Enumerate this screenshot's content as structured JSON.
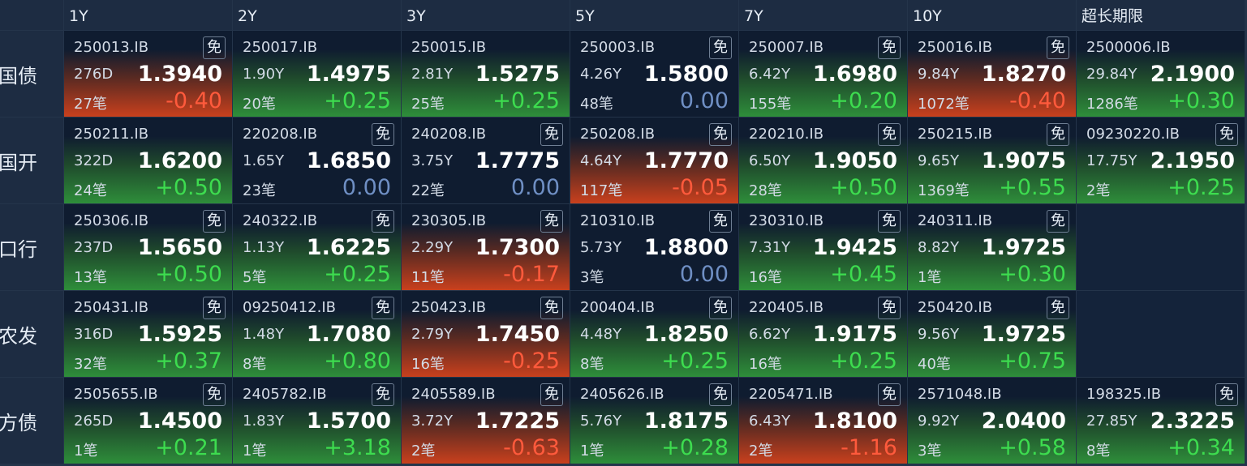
{
  "table": {
    "columns": [
      "1Y",
      "2Y",
      "3Y",
      "5Y",
      "7Y",
      "10Y",
      "超长期限"
    ],
    "rows": [
      {
        "label": "国债",
        "cells": [
          {
            "code": "250013.IB",
            "tag": "免",
            "term": "276D",
            "yield": "1.3940",
            "count": "27笔",
            "change": "-0.40"
          },
          {
            "code": "250017.IB",
            "term": "1.90Y",
            "yield": "1.4975",
            "count": "20笔",
            "change": "+0.25"
          },
          {
            "code": "250015.IB",
            "term": "2.81Y",
            "yield": "1.5275",
            "count": "25笔",
            "change": "+0.25"
          },
          {
            "code": "250003.IB",
            "tag": "免",
            "term": "4.26Y",
            "yield": "1.5800",
            "count": "48笔",
            "change": "0.00"
          },
          {
            "code": "250007.IB",
            "tag": "免",
            "term": "6.42Y",
            "yield": "1.6980",
            "count": "155笔",
            "change": "+0.20"
          },
          {
            "code": "250016.IB",
            "tag": "免",
            "term": "9.84Y",
            "yield": "1.8270",
            "count": "1072笔",
            "change": "-0.40"
          },
          {
            "code": "2500006.IB",
            "term": "29.84Y",
            "yield": "2.1900",
            "count": "1286笔",
            "change": "+0.30"
          }
        ]
      },
      {
        "label": "国开",
        "cells": [
          {
            "code": "250211.IB",
            "term": "322D",
            "yield": "1.6200",
            "count": "24笔",
            "change": "+0.50"
          },
          {
            "code": "220208.IB",
            "tag": "免",
            "term": "1.65Y",
            "yield": "1.6850",
            "count": "23笔",
            "change": "0.00"
          },
          {
            "code": "240208.IB",
            "tag": "免",
            "term": "3.75Y",
            "yield": "1.7775",
            "count": "22笔",
            "change": "0.00"
          },
          {
            "code": "250208.IB",
            "tag": "免",
            "term": "4.64Y",
            "yield": "1.7770",
            "count": "117笔",
            "change": "-0.05"
          },
          {
            "code": "220210.IB",
            "tag": "免",
            "term": "6.50Y",
            "yield": "1.9050",
            "count": "28笔",
            "change": "+0.50"
          },
          {
            "code": "250215.IB",
            "tag": "免",
            "term": "9.65Y",
            "yield": "1.9075",
            "count": "1369笔",
            "change": "+0.55"
          },
          {
            "code": "09230220.IB",
            "tag": "免",
            "term": "17.75Y",
            "yield": "2.1950",
            "count": "2笔",
            "change": "+0.25"
          }
        ]
      },
      {
        "label": "口行",
        "cells": [
          {
            "code": "250306.IB",
            "tag": "免",
            "term": "237D",
            "yield": "1.5650",
            "count": "13笔",
            "change": "+0.50"
          },
          {
            "code": "240322.IB",
            "tag": "免",
            "term": "1.13Y",
            "yield": "1.6225",
            "count": "5笔",
            "change": "+0.25"
          },
          {
            "code": "230305.IB",
            "tag": "免",
            "term": "2.29Y",
            "yield": "1.7300",
            "count": "11笔",
            "change": "-0.17"
          },
          {
            "code": "210310.IB",
            "tag": "免",
            "term": "5.73Y",
            "yield": "1.8800",
            "count": "3笔",
            "change": "0.00"
          },
          {
            "code": "230310.IB",
            "tag": "免",
            "term": "7.31Y",
            "yield": "1.9425",
            "count": "16笔",
            "change": "+0.45"
          },
          {
            "code": "240311.IB",
            "tag": "免",
            "term": "8.82Y",
            "yield": "1.9725",
            "count": "1笔",
            "change": "+0.30"
          },
          null
        ]
      },
      {
        "label": "农发",
        "cells": [
          {
            "code": "250431.IB",
            "tag": "免",
            "term": "316D",
            "yield": "1.5925",
            "count": "32笔",
            "change": "+0.37"
          },
          {
            "code": "09250412.IB",
            "tag": "免",
            "term": "1.48Y",
            "yield": "1.7080",
            "count": "8笔",
            "change": "+0.80"
          },
          {
            "code": "250423.IB",
            "tag": "免",
            "term": "2.79Y",
            "yield": "1.7450",
            "count": "16笔",
            "change": "-0.25"
          },
          {
            "code": "200404.IB",
            "tag": "免",
            "term": "4.48Y",
            "yield": "1.8250",
            "count": "8笔",
            "change": "+0.25"
          },
          {
            "code": "220405.IB",
            "tag": "免",
            "term": "6.62Y",
            "yield": "1.9175",
            "count": "16笔",
            "change": "+0.25"
          },
          {
            "code": "250420.IB",
            "tag": "免",
            "term": "9.56Y",
            "yield": "1.9725",
            "count": "40笔",
            "change": "+0.75"
          },
          null
        ]
      },
      {
        "label": "方债",
        "cells": [
          {
            "code": "2505655.IB",
            "tag": "免",
            "term": "265D",
            "yield": "1.4500",
            "count": "1笔",
            "change": "+0.21"
          },
          {
            "code": "2405782.IB",
            "tag": "免",
            "term": "1.83Y",
            "yield": "1.5700",
            "count": "1笔",
            "change": "+3.18"
          },
          {
            "code": "2405589.IB",
            "tag": "免",
            "term": "3.72Y",
            "yield": "1.7225",
            "count": "2笔",
            "change": "-0.63"
          },
          {
            "code": "2405626.IB",
            "tag": "免",
            "term": "5.76Y",
            "yield": "1.8175",
            "count": "1笔",
            "change": "+0.28"
          },
          {
            "code": "2205471.IB",
            "tag": "免",
            "term": "6.43Y",
            "yield": "1.8100",
            "count": "2笔",
            "change": "-1.16"
          },
          {
            "code": "2571048.IB",
            "term": "9.92Y",
            "yield": "2.0400",
            "count": "3笔",
            "change": "+0.58"
          },
          {
            "code": "198325.IB",
            "tag": "免",
            "term": "27.85Y",
            "yield": "2.3225",
            "count": "8笔",
            "change": "+0.34"
          }
        ]
      }
    ]
  }
}
